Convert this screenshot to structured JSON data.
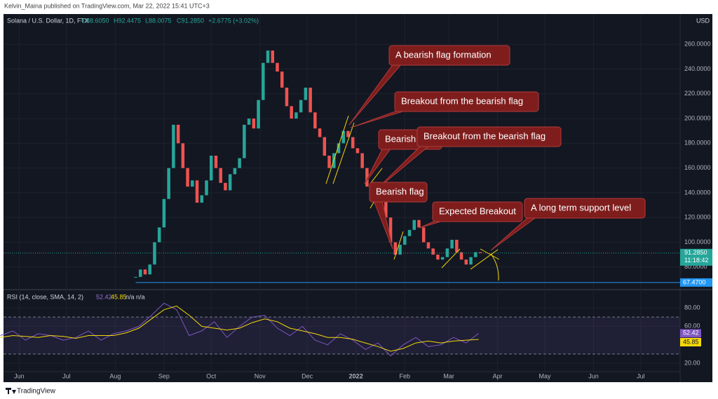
{
  "header": {
    "publisher": "Kelvin_Maina published on TradingView.com, Mar 22, 2022 15:41 UTC+3",
    "currency": "USD"
  },
  "legend": {
    "symbol": "Solana / U.S. Dollar, 1D, FTX",
    "open": "O88.6050",
    "high": "H92.4475",
    "low": "L88.0075",
    "close": "C91.2850",
    "change": "+2.6775 (+3.02%)"
  },
  "annotations": [
    "A bearish flag formation",
    "Breakout from the bearish flag",
    "Bearish flag",
    "Breakout from the bearish flag",
    "Bearish flag",
    "Expected Breakout",
    "A long term support level"
  ],
  "footer": {
    "brand": "TradingView"
  },
  "chart_data": [
    {
      "type": "candlestick",
      "title": "Solana / U.S. Dollar",
      "xlim": [
        -10,
        420
      ],
      "xticks": [
        {
          "value": 0,
          "label": "Jun"
        },
        {
          "value": 30,
          "label": "Jul"
        },
        {
          "value": 61,
          "label": "Aug"
        },
        {
          "value": 92,
          "label": "Sep"
        },
        {
          "value": 122,
          "label": "Oct"
        },
        {
          "value": 153,
          "label": "Nov"
        },
        {
          "value": 183,
          "label": "Dec"
        },
        {
          "value": 214,
          "label": "2022"
        },
        {
          "value": 245,
          "label": "Feb"
        },
        {
          "value": 273,
          "label": "Mar"
        },
        {
          "value": 304,
          "label": "Apr"
        },
        {
          "value": 334,
          "label": "May"
        },
        {
          "value": 365,
          "label": "Jun"
        },
        {
          "value": 395,
          "label": "Jul"
        }
      ],
      "ylim": [
        62.3,
        284.5
      ],
      "yticks": [
        {
          "value": 80,
          "label": "80.0000"
        },
        {
          "value": 100,
          "label": "100.0000"
        },
        {
          "value": 120,
          "label": "120.0000"
        },
        {
          "value": 140,
          "label": "140.0000"
        },
        {
          "value": 160,
          "label": "160.0000"
        },
        {
          "value": 180,
          "label": "180.0000"
        },
        {
          "value": 200,
          "label": "200.0000"
        },
        {
          "value": 220,
          "label": "220.0000"
        },
        {
          "value": 240,
          "label": "240.0000"
        },
        {
          "value": 260,
          "label": "260.0000"
        }
      ],
      "up_color": "#26a69a",
      "down_color": "#ef5350",
      "x": [
        74,
        77,
        80,
        83,
        86,
        89,
        92,
        95,
        98,
        101,
        104,
        107,
        110,
        113,
        116,
        119,
        122,
        125,
        128,
        131,
        134,
        137,
        140,
        143,
        146,
        149,
        152,
        155,
        158,
        161,
        164,
        167,
        170,
        173,
        176,
        179,
        182,
        185,
        188,
        191,
        194,
        197,
        200,
        203,
        206,
        209,
        212,
        215,
        218,
        221,
        224,
        227,
        230,
        233,
        236,
        239,
        242,
        245,
        248,
        251,
        254,
        257,
        260,
        263,
        266,
        269,
        272,
        275,
        278,
        281,
        284,
        287,
        290,
        293
      ],
      "close": [
        72,
        78,
        74,
        82,
        100,
        112,
        135,
        160,
        195,
        180,
        160,
        145,
        150,
        132,
        138,
        150,
        170,
        160,
        148,
        142,
        155,
        160,
        168,
        195,
        200,
        192,
        215,
        245,
        255,
        245,
        238,
        225,
        210,
        200,
        205,
        215,
        225,
        205,
        192,
        185,
        170,
        160,
        172,
        180,
        190,
        185,
        176,
        172,
        160,
        145,
        140,
        148,
        140,
        120,
        100,
        90,
        98,
        105,
        110,
        118,
        112,
        100,
        95,
        90,
        86,
        88,
        95,
        102,
        92,
        86,
        82,
        88,
        92,
        91.285
      ],
      "price_tag": {
        "value": 91.285,
        "label": "91.2850"
      },
      "countdown": "11:18:42",
      "support": {
        "value": 67.47,
        "label": "67.4700"
      }
    },
    {
      "type": "line",
      "title": "RSI (14, close, SMA, 14, 2)",
      "na": "n/a n/a",
      "ylim": [
        10.9,
        99
      ],
      "yticks": [
        {
          "value": 80,
          "label": "80.00"
        },
        {
          "value": 60,
          "label": "60.00"
        },
        {
          "value": 20,
          "label": "20.00"
        }
      ],
      "bands": [
        30,
        70
      ],
      "x": [
        -12,
        -4,
        4,
        12,
        20,
        28,
        36,
        44,
        52,
        60,
        68,
        76,
        84,
        92,
        100,
        108,
        116,
        124,
        132,
        140,
        148,
        156,
        164,
        172,
        180,
        188,
        196,
        204,
        212,
        220,
        228,
        236,
        244,
        252,
        260,
        268,
        276,
        284,
        292
      ],
      "series": [
        {
          "name": "RSI",
          "color": "#7e57c2",
          "values": [
            50,
            55,
            45,
            52,
            50,
            45,
            48,
            55,
            45,
            52,
            55,
            60,
            72,
            85,
            78,
            50,
            55,
            65,
            48,
            60,
            70,
            72,
            58,
            50,
            60,
            45,
            40,
            52,
            45,
            35,
            42,
            28,
            40,
            48,
            38,
            40,
            48,
            42,
            52.42
          ]
        },
        {
          "name": "SMA",
          "color": "#f5d90a",
          "values": [
            48,
            50,
            49,
            48,
            50,
            49,
            47,
            50,
            50,
            50,
            53,
            58,
            68,
            78,
            82,
            72,
            60,
            58,
            56,
            58,
            64,
            68,
            65,
            58,
            55,
            52,
            48,
            48,
            46,
            42,
            38,
            33,
            36,
            42,
            44,
            42,
            44,
            45,
            45.85
          ]
        }
      ]
    }
  ]
}
